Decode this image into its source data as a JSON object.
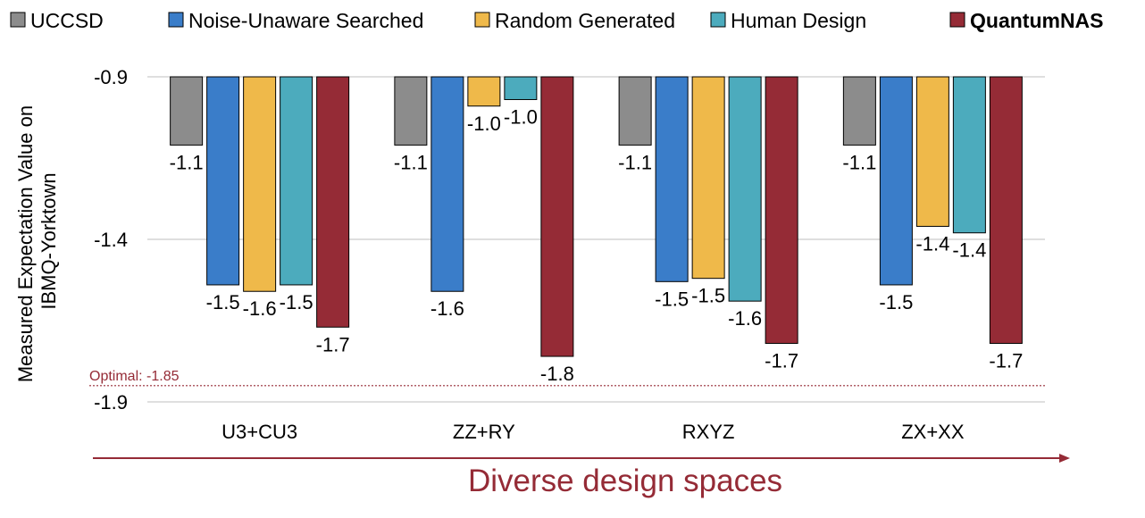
{
  "chart_data": {
    "type": "bar",
    "categories": [
      "U3+CU3",
      "ZZ+RY",
      "RXYZ",
      "ZX+XX"
    ],
    "series": [
      {
        "name": "UCCSD",
        "color": "#8c8c8c",
        "values": [
          -1.11,
          -1.11,
          -1.11,
          -1.11
        ],
        "labels": [
          "-1.1",
          "-1.1",
          "-1.1",
          "-1.1"
        ]
      },
      {
        "name": "Noise-Unaware Searched",
        "color": "#3a7dc9",
        "values": [
          -1.54,
          -1.56,
          -1.53,
          -1.54
        ],
        "labels": [
          "-1.5",
          "-1.6",
          "-1.5",
          "-1.5"
        ]
      },
      {
        "name": "Random Generated",
        "color": "#efb94a",
        "values": [
          -1.56,
          -0.99,
          -1.52,
          -1.36
        ],
        "labels": [
          "-1.6",
          "-1.0",
          "-1.5",
          "-1.4"
        ]
      },
      {
        "name": "Human Design",
        "color": "#4cabbd",
        "values": [
          -1.54,
          -0.97,
          -1.59,
          -1.38
        ],
        "labels": [
          "-1.5",
          "-1.0",
          "-1.6",
          "-1.4"
        ]
      },
      {
        "name": "QuantumNAS",
        "color": "#952b36",
        "values": [
          -1.67,
          -1.76,
          -1.72,
          -1.72
        ],
        "labels": [
          "-1.7",
          "-1.8",
          "-1.7",
          "-1.7"
        ],
        "bold": true
      }
    ],
    "ylabel_lines": [
      "Measured Expectation Value on",
      "IBMQ-Yorktown"
    ],
    "ylim": [
      -1.9,
      -0.9
    ],
    "yticks": [
      -0.9,
      -1.4,
      -1.9
    ],
    "ytick_labels": [
      "-0.9",
      "-1.4",
      "-1.9"
    ],
    "reference_line": {
      "value": -1.85,
      "label": "Optimal: -1.85",
      "color": "#952b36"
    },
    "grid": true,
    "legend_placement": "top",
    "footer_label": "Diverse design spaces",
    "footer_color": "#952b36"
  }
}
